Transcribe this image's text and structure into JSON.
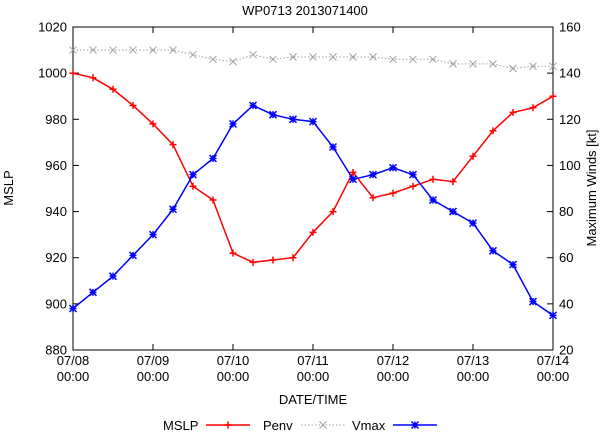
{
  "chart_data": {
    "type": "line",
    "title": "WP0713 2013071400",
    "xlabel": "DATE/TIME",
    "ylabel": "MSLP",
    "y2label": "Maximum Winds [kt]",
    "xlim": [
      0,
      144
    ],
    "ylim": [
      880,
      1020
    ],
    "y2lim": [
      20,
      160
    ],
    "x_ticks": [
      {
        "x": 0,
        "line1": "07/08",
        "line2": "00:00"
      },
      {
        "x": 24,
        "line1": "07/09",
        "line2": "00:00"
      },
      {
        "x": 48,
        "line1": "07/10",
        "line2": "00:00"
      },
      {
        "x": 72,
        "line1": "07/11",
        "line2": "00:00"
      },
      {
        "x": 96,
        "line1": "07/12",
        "line2": "00:00"
      },
      {
        "x": 120,
        "line1": "07/13",
        "line2": "00:00"
      },
      {
        "x": 144,
        "line1": "07/14",
        "line2": "00:00"
      }
    ],
    "y_ticks": [
      880,
      900,
      920,
      940,
      960,
      980,
      1000,
      1020
    ],
    "y2_ticks": [
      20,
      40,
      60,
      80,
      100,
      120,
      140,
      160
    ],
    "legend": {
      "placement": "bottom",
      "entries": [
        {
          "label": "MSLP",
          "series": ""
        },
        {
          "label": "Penv",
          "series": "mslp"
        },
        {
          "label": "Vmax",
          "series": "penv"
        },
        {
          "label": "",
          "series": "vmax"
        }
      ]
    },
    "colors": {
      "mslp": "#ff0000",
      "penv": "#a0a0a0",
      "vmax": "#0000ff"
    },
    "series": [
      {
        "id": "mslp",
        "axis": "y",
        "marker": "plus",
        "line": "solid",
        "x": [
          0,
          6,
          12,
          18,
          24,
          30,
          36,
          42,
          48,
          54,
          60,
          66,
          72,
          78,
          84,
          90,
          96,
          102,
          108,
          114,
          120,
          126,
          132,
          138,
          144
        ],
        "values": [
          1000,
          998,
          993,
          986,
          978,
          969,
          951,
          945,
          922,
          918,
          919,
          920,
          931,
          940,
          957,
          946,
          948,
          951,
          954,
          953,
          964,
          975,
          983,
          985,
          990
        ]
      },
      {
        "id": "penv",
        "axis": "y",
        "marker": "cross",
        "line": "dotted",
        "x": [
          0,
          6,
          12,
          18,
          24,
          30,
          36,
          42,
          48,
          54,
          60,
          66,
          72,
          78,
          84,
          90,
          96,
          102,
          108,
          114,
          120,
          126,
          132,
          138,
          144
        ],
        "values": [
          1010,
          1010,
          1010,
          1010,
          1010,
          1010,
          1008,
          1006,
          1005,
          1008,
          1006,
          1007,
          1007,
          1007,
          1007,
          1007,
          1006,
          1006,
          1006,
          1004,
          1004,
          1004,
          1002,
          1003,
          1003
        ]
      },
      {
        "id": "vmax",
        "axis": "y2",
        "marker": "star",
        "line": "solid",
        "x": [
          0,
          6,
          12,
          18,
          24,
          30,
          36,
          42,
          48,
          54,
          60,
          66,
          72,
          78,
          84,
          90,
          96,
          102,
          108,
          114,
          120,
          126,
          132,
          138,
          144
        ],
        "values": [
          38,
          45,
          52,
          61,
          70,
          81,
          96,
          103,
          118,
          126,
          122,
          120,
          119,
          108,
          94,
          96,
          99,
          96,
          85,
          80,
          75,
          63,
          57,
          41,
          35
        ]
      }
    ]
  }
}
